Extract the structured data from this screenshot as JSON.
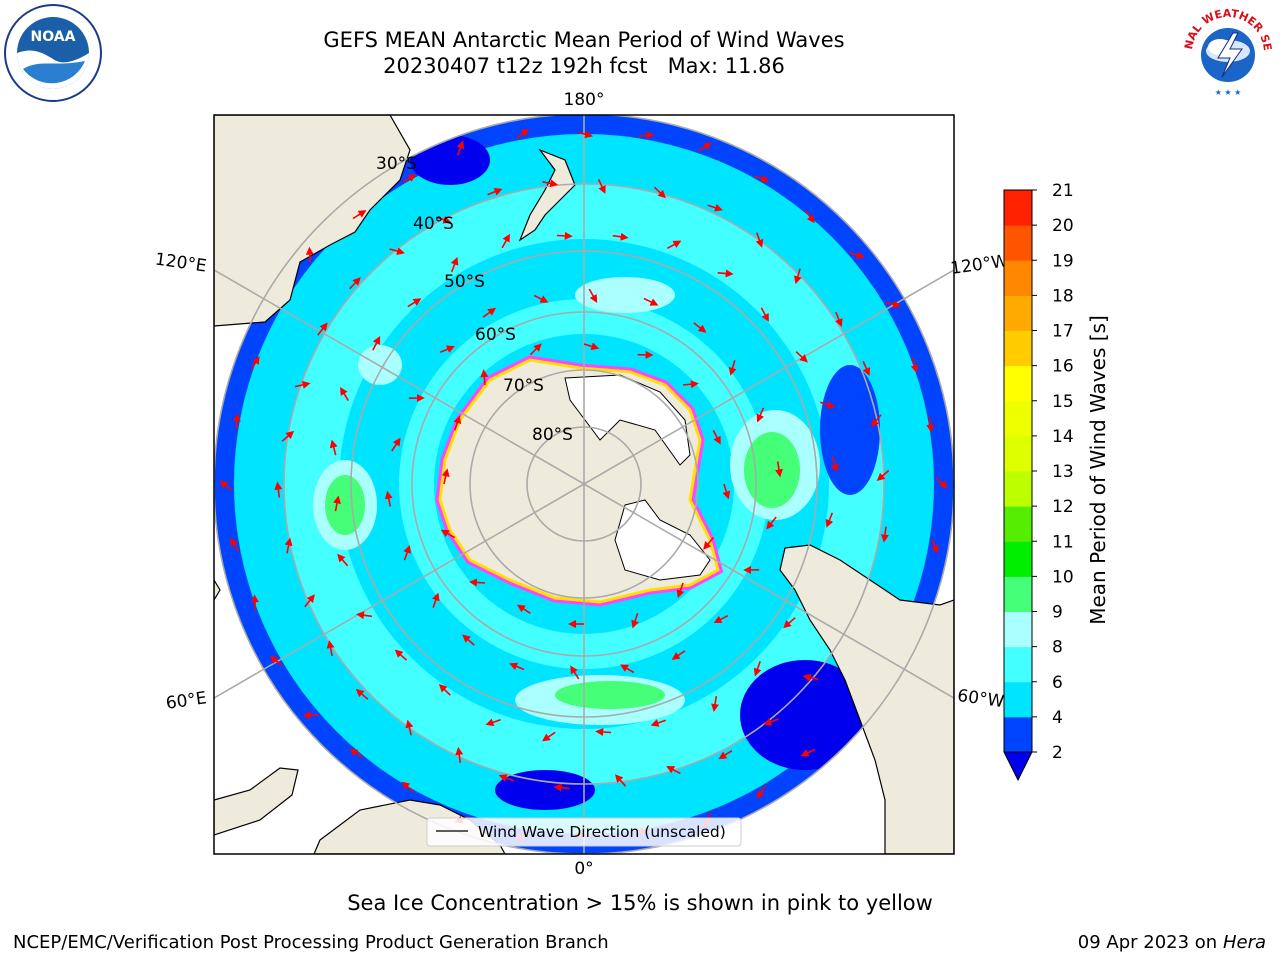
{
  "header": {
    "title_line1": "GEFS MEAN Antarctic Mean Period of Wind Waves",
    "title_line2": "20230407 t12z 192h fcst   Max: 11.86"
  },
  "logos": {
    "noaa_text": "NOAA",
    "nws_text": "NATIONAL WEATHER SERVICE"
  },
  "map": {
    "projection": "south-polar-stereographic",
    "longitude_labels": {
      "top": "180°",
      "bottom": "0°",
      "left_upper": "120°E",
      "left_lower": "60°E",
      "right_upper": "120°W",
      "right_lower": "60°W"
    },
    "latitude_labels": [
      "30°S",
      "40°S",
      "50°S",
      "60°S",
      "70°S",
      "80°S"
    ],
    "legend_label": "Wind Wave Direction (unscaled)",
    "land_color": "#efebdc",
    "ice_shelf_color": "#ffffff",
    "sea_ice_edge_colors": [
      "#ff44ff",
      "#ff9900",
      "#ffe000"
    ],
    "arrow_color": "#ff0000",
    "arrow_icon": "arrow-icon"
  },
  "colorbar": {
    "label": "Mean Period of Wind Waves [s]",
    "ticks": [
      "2",
      "4",
      "6",
      "8",
      "9",
      "10",
      "11",
      "12",
      "13",
      "14",
      "15",
      "16",
      "17",
      "18",
      "19",
      "20",
      "21"
    ],
    "colors": [
      "#0044ff",
      "#00e5ff",
      "#44ffff",
      "#aaffff",
      "#44ff77",
      "#00ee00",
      "#55ee00",
      "#bbff00",
      "#ddff00",
      "#eeff00",
      "#ffff00",
      "#ffcc00",
      "#ffaa00",
      "#ff8800",
      "#ff5500",
      "#ff2200",
      "#ff0000"
    ],
    "under_color": "#0000ee"
  },
  "footer": {
    "note": "Sea Ice Concentration > 15% is shown in pink to yellow",
    "credit_left": "NCEP/EMC/Verification Post Processing Product Generation Branch",
    "credit_date": "09 Apr 2023 on",
    "credit_machine": "Hera"
  }
}
